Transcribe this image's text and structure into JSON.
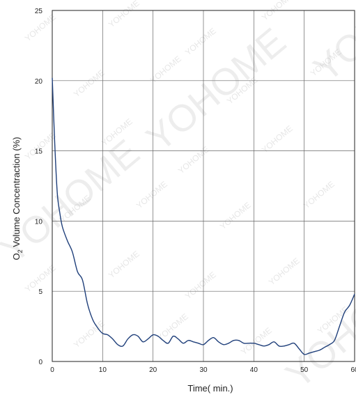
{
  "chart_data": {
    "type": "line",
    "title": "",
    "xlabel": "Time( min.)",
    "ylabel_prefix": "O",
    "ylabel_subscript": "2",
    "ylabel_rest": " Volume Concentraction (%)",
    "xlim": [
      0,
      60
    ],
    "ylim": [
      0,
      25
    ],
    "x_ticks": [
      0,
      10,
      20,
      30,
      40,
      50,
      60
    ],
    "y_ticks": [
      0,
      5,
      10,
      15,
      20,
      25
    ],
    "grid": true,
    "legend": "none",
    "line_color": "#1f3f7a",
    "series": [
      {
        "x": [
          0,
          0.5,
          1,
          1.5,
          2,
          3,
          4,
          5,
          6,
          7,
          8,
          9,
          10,
          11,
          12,
          13,
          14,
          15,
          16,
          17,
          18,
          19,
          20,
          21,
          22,
          23,
          24,
          25,
          26,
          27,
          28,
          29,
          30,
          31,
          32,
          33,
          34,
          35,
          36,
          37,
          38,
          39,
          40,
          41,
          42,
          43,
          44,
          45,
          46,
          47,
          48,
          49,
          50,
          51,
          52,
          53,
          54,
          55,
          56,
          57,
          58,
          59,
          60
        ],
        "y": [
          20.2,
          15.5,
          12.0,
          10.6,
          9.6,
          8.6,
          7.8,
          6.4,
          5.8,
          4.1,
          3.0,
          2.4,
          2.0,
          1.9,
          1.6,
          1.2,
          1.1,
          1.6,
          1.9,
          1.8,
          1.4,
          1.6,
          1.9,
          1.8,
          1.5,
          1.3,
          1.8,
          1.6,
          1.3,
          1.5,
          1.4,
          1.3,
          1.2,
          1.5,
          1.7,
          1.4,
          1.2,
          1.3,
          1.5,
          1.5,
          1.3,
          1.3,
          1.3,
          1.2,
          1.1,
          1.2,
          1.4,
          1.1,
          1.1,
          1.2,
          1.3,
          0.9,
          0.5,
          0.6,
          0.7,
          0.8,
          1.0,
          1.2,
          1.5,
          2.5,
          3.5,
          4.0,
          4.8
        ]
      }
    ]
  },
  "watermark": {
    "small": "YOHOME",
    "big": "YOHOME",
    "color": "#b9b9b9"
  }
}
